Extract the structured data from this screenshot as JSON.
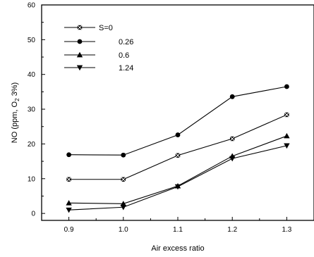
{
  "chart_data": {
    "type": "line",
    "xlabel": "Air excess ratio",
    "ylabel": "NO (ppm, O",
    "ylabel_sub": "2",
    "ylabel_tail": " 3%)",
    "x": [
      0.9,
      1.0,
      1.1,
      1.2,
      1.3
    ],
    "x_tick_labels": [
      "0.9",
      "1.0",
      "1.1",
      "1.2",
      "1.3"
    ],
    "xlim": [
      0.85,
      1.35
    ],
    "ylim": [
      -2,
      60
    ],
    "y_ticks": [
      0,
      10,
      20,
      30,
      40,
      50,
      60
    ],
    "y_tick_labels": [
      "0",
      "10",
      "20",
      "30",
      "40",
      "50",
      "60"
    ],
    "grid": false,
    "legend_placement": "top-left",
    "series": [
      {
        "name": "S=0",
        "marker": "x-square",
        "values": [
          9.8,
          9.8,
          16.7,
          21.5,
          28.4
        ]
      },
      {
        "name": "0.26",
        "marker": "circle",
        "values": [
          16.9,
          16.8,
          22.6,
          33.6,
          36.5
        ]
      },
      {
        "name": "0.6",
        "marker": "triangle-up",
        "values": [
          3.0,
          2.8,
          7.9,
          16.5,
          22.3
        ]
      },
      {
        "name": "1.24",
        "marker": "triangle-down",
        "values": [
          1.0,
          1.8,
          7.7,
          15.8,
          19.5
        ]
      }
    ]
  }
}
